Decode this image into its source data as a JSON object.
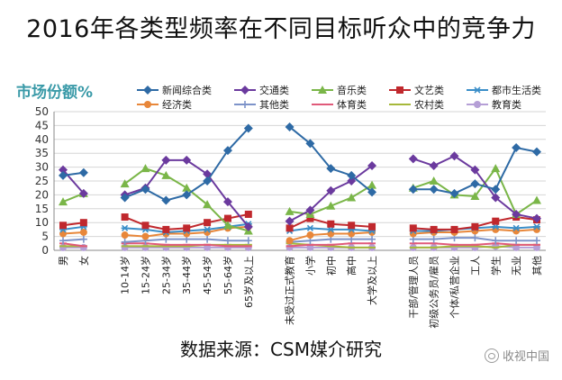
{
  "title": "2016年各类型频率在不同目标听众中的竞争力",
  "source": "数据来源：CSM媒介研究",
  "watermark": "收视中国",
  "chart_data": {
    "type": "line",
    "ylabel": "市场份额%",
    "ylim": [
      0,
      50
    ],
    "yticks": [
      0,
      5,
      10,
      15,
      20,
      25,
      30,
      35,
      40,
      45,
      50
    ],
    "grid": true,
    "legend_position": "top",
    "groups": [
      {
        "name": "gender",
        "categories": [
          "男",
          "女"
        ]
      },
      {
        "name": "age",
        "categories": [
          "10-14岁",
          "15-24岁",
          "25-34岁",
          "35-44岁",
          "45-54岁",
          "55-64岁",
          "65岁及以上"
        ]
      },
      {
        "name": "education",
        "categories": [
          "未受过正式教育",
          "小学",
          "初中",
          "高中",
          "大学及以上"
        ]
      },
      {
        "name": "occupation",
        "categories": [
          "干部/管理人员",
          "初级公务员/雇员",
          "个体/私营企业",
          "工人",
          "学生",
          "无业",
          "其他"
        ]
      }
    ],
    "series": [
      {
        "name": "新闻综合类",
        "color": "#2e6aa5",
        "marker": "diamond",
        "values": [
          [
            27,
            28
          ],
          [
            19,
            22,
            18,
            20,
            25,
            36,
            44
          ],
          [
            44.5,
            38.5,
            29.5,
            27,
            21
          ],
          [
            22,
            22,
            20.5,
            24,
            22,
            37,
            35.5
          ]
        ]
      },
      {
        "name": "交通类",
        "color": "#6b3a9e",
        "marker": "diamond",
        "values": [
          [
            29,
            20.5
          ],
          [
            20,
            22.5,
            32.5,
            32.5,
            27.5,
            17.5,
            8.5
          ],
          [
            10.5,
            14.5,
            21.5,
            25,
            30.5
          ],
          [
            33,
            30.5,
            34,
            29,
            19,
            13,
            11.5
          ]
        ]
      },
      {
        "name": "音乐类",
        "color": "#7ab648",
        "marker": "triangle",
        "values": [
          [
            17.5,
            20.5
          ],
          [
            24,
            29.5,
            27,
            22.5,
            16.5,
            9,
            7
          ],
          [
            14,
            13,
            16,
            19,
            23.5
          ],
          [
            22.5,
            25,
            20,
            19.5,
            29.5,
            13,
            18
          ]
        ]
      },
      {
        "name": "文艺类",
        "color": "#c0282d",
        "marker": "square",
        "values": [
          [
            9,
            10
          ],
          [
            12,
            9,
            7.5,
            8,
            10,
            11.5,
            13
          ],
          [
            8,
            11.5,
            9.5,
            9,
            8.5
          ],
          [
            8,
            7.5,
            7.5,
            8.5,
            10.5,
            12,
            11
          ]
        ]
      },
      {
        "name": "都市生活类",
        "color": "#3a8ec8",
        "marker": "star",
        "values": [
          [
            7.5,
            8.5
          ],
          [
            8,
            7.5,
            6.5,
            7,
            7.5,
            8.5,
            9.5
          ],
          [
            7,
            8,
            7.5,
            7.5,
            7
          ],
          [
            7,
            7,
            7.5,
            8,
            8.5,
            8,
            8.5
          ]
        ]
      },
      {
        "name": "经济类",
        "color": "#e8873a",
        "marker": "circle",
        "values": [
          [
            6,
            6.5
          ],
          [
            5.5,
            5,
            6,
            6,
            6.5,
            8,
            8.5
          ],
          [
            3.5,
            5.5,
            6,
            6,
            6.5
          ],
          [
            6,
            6.5,
            6.5,
            7,
            7.5,
            7,
            7.5
          ]
        ]
      },
      {
        "name": "其他类",
        "color": "#7d93c9",
        "marker": "plus",
        "values": [
          [
            3.5,
            4
          ],
          [
            3,
            3.5,
            4,
            4,
            4,
            3.5,
            3.5
          ],
          [
            3,
            3.5,
            4,
            4,
            4
          ],
          [
            4,
            4,
            4.5,
            4.5,
            3.5,
            3.5,
            3.5
          ]
        ]
      },
      {
        "name": "体育类",
        "color": "#e05a7a",
        "marker": "dash",
        "values": [
          [
            2.5,
            1.5
          ],
          [
            2.5,
            2.5,
            2,
            2,
            2,
            1.5,
            1.5
          ],
          [
            1.5,
            2,
            2,
            2.5,
            2.5
          ],
          [
            2.5,
            2.5,
            2,
            2,
            2.5,
            2,
            2
          ]
        ]
      },
      {
        "name": "农村类",
        "color": "#a6b83a",
        "marker": "dash",
        "values": [
          [
            1.5,
            1.5
          ],
          [
            1.5,
            1.5,
            1.5,
            1.5,
            2,
            2,
            2
          ],
          [
            2.5,
            2,
            1.5,
            1,
            1
          ],
          [
            1,
            1,
            1.5,
            1.5,
            1,
            2,
            2
          ]
        ]
      },
      {
        "name": "教育类",
        "color": "#b59fd6",
        "marker": "circle",
        "values": [
          [
            1,
            1
          ],
          [
            1,
            1,
            1,
            1,
            1,
            1,
            1
          ],
          [
            1,
            1,
            1,
            1,
            1
          ],
          [
            1,
            1,
            1,
            1,
            1.5,
            1,
            1
          ]
        ]
      }
    ]
  }
}
